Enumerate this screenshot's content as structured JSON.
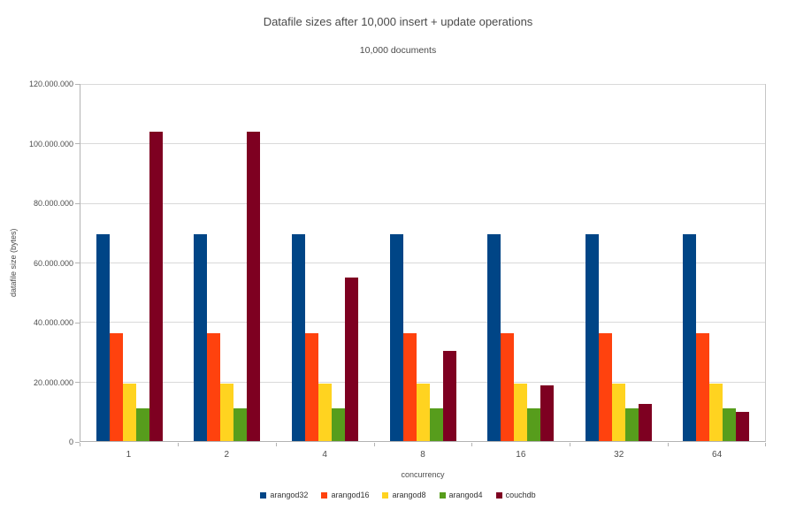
{
  "chart_data": {
    "type": "bar",
    "title": "Datafile sizes after 10,000 insert + update operations",
    "subtitle": "10,000 documents",
    "xlabel": "concurrency",
    "ylabel": "datafile size (bytes)",
    "ylim": [
      0,
      120000000
    ],
    "grid": true,
    "legend_position": "bottom",
    "categories": [
      "1",
      "2",
      "4",
      "8",
      "16",
      "32",
      "64"
    ],
    "yticks": [
      {
        "value": 0,
        "label": "0"
      },
      {
        "value": 20000000,
        "label": "20.000.000"
      },
      {
        "value": 40000000,
        "label": "40.000.000"
      },
      {
        "value": 60000000,
        "label": "60.000.000"
      },
      {
        "value": 80000000,
        "label": "80.000.000"
      },
      {
        "value": 100000000,
        "label": "100.000.000"
      },
      {
        "value": 120000000,
        "label": "120.000.000"
      }
    ],
    "series": [
      {
        "name": "arangod32",
        "color": "#004586",
        "values": [
          69600000,
          69600000,
          69600000,
          69600000,
          69600000,
          69600000,
          69600000
        ]
      },
      {
        "name": "arangod16",
        "color": "#ff420e",
        "values": [
          36200000,
          36200000,
          36200000,
          36200000,
          36200000,
          36200000,
          36200000
        ]
      },
      {
        "name": "arangod8",
        "color": "#ffd320",
        "values": [
          19400000,
          19400000,
          19400000,
          19400000,
          19400000,
          19400000,
          19400000
        ]
      },
      {
        "name": "arangod4",
        "color": "#579d1c",
        "values": [
          11100000,
          11100000,
          11100000,
          11100000,
          11100000,
          11100000,
          11100000
        ]
      },
      {
        "name": "couchdb",
        "color": "#7e0021",
        "values": [
          104100000,
          104100000,
          55000000,
          30300000,
          18800000,
          12600000,
          9700000
        ]
      }
    ]
  },
  "palette": {
    "gridline": "#d9d9d9",
    "axis_line": "#b3b3b3",
    "text": "#4d4d4d"
  }
}
